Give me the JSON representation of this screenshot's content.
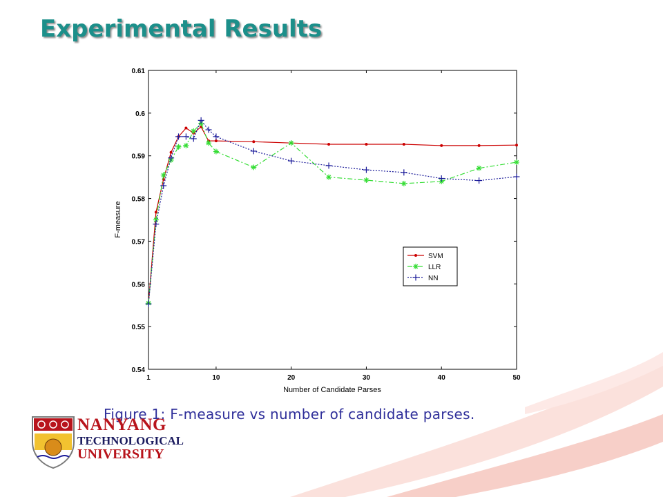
{
  "slide": {
    "title": "Experimental Results",
    "caption": "Figure 1: F-measure vs number of candidate parses."
  },
  "logo": {
    "line1": "NANYANG",
    "line2": "TECHNOLOGICAL",
    "line3": "UNIVERSITY",
    "red": "#b8141c",
    "navy": "#1a1a5e"
  },
  "colors": {
    "title": "#1c8f8a",
    "caption": "#2f2f9a",
    "swoosh": "#f9d4cf"
  },
  "chart_data": {
    "type": "line",
    "title": "",
    "xlabel": "Number of Candidate Parses",
    "ylabel": "F-measure",
    "xlim": [
      1,
      50
    ],
    "ylim": [
      0.54,
      0.61
    ],
    "xticks": [
      1,
      10,
      20,
      30,
      40,
      50
    ],
    "yticks": [
      0.54,
      0.55,
      0.56,
      0.57,
      0.58,
      0.59,
      0.6,
      0.61
    ],
    "ytick_labels": [
      "0.54",
      "0.55",
      "0.56",
      "0.57",
      "0.58",
      "0.59",
      "0.6",
      "0.61"
    ],
    "grid": false,
    "legend_position": "lower-right",
    "series": [
      {
        "name": "SVM",
        "color": "#cc0000",
        "marker": "dot",
        "dash": "solid",
        "x": [
          1,
          2,
          3,
          4,
          5,
          6,
          7,
          8,
          9,
          10,
          15,
          20,
          25,
          30,
          35,
          40,
          45,
          50
        ],
        "y": [
          0.5555,
          0.5768,
          0.5845,
          0.5908,
          0.5945,
          0.5965,
          0.5953,
          0.5968,
          0.5935,
          0.5935,
          0.5933,
          0.593,
          0.5927,
          0.5927,
          0.5927,
          0.5924,
          0.5924,
          0.5925
        ]
      },
      {
        "name": "LLR",
        "color": "#33dd33",
        "marker": "asterisk",
        "dash": "dashdot",
        "x": [
          1,
          2,
          3,
          4,
          5,
          6,
          7,
          8,
          9,
          10,
          15,
          20,
          25,
          30,
          35,
          40,
          45,
          50
        ],
        "y": [
          0.5555,
          0.575,
          0.5855,
          0.589,
          0.5921,
          0.5924,
          0.5958,
          0.5976,
          0.593,
          0.591,
          0.5873,
          0.593,
          0.585,
          0.5843,
          0.5835,
          0.584,
          0.5871,
          0.5885
        ]
      },
      {
        "name": "NN",
        "color": "#1a1a99",
        "marker": "plus",
        "dash": "dotted",
        "x": [
          1,
          2,
          3,
          4,
          5,
          6,
          7,
          8,
          9,
          10,
          15,
          20,
          25,
          30,
          35,
          40,
          45,
          50
        ],
        "y": [
          0.5553,
          0.574,
          0.583,
          0.5895,
          0.5945,
          0.5945,
          0.594,
          0.5983,
          0.5961,
          0.5945,
          0.5911,
          0.5888,
          0.5877,
          0.5867,
          0.5861,
          0.5847,
          0.5842,
          0.5851
        ]
      }
    ]
  }
}
